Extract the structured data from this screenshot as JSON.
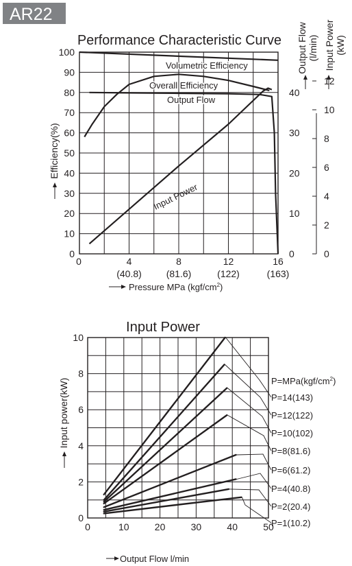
{
  "badge": "AR22",
  "chart_data": [
    {
      "type": "line",
      "title": "Performance Characteristic Curve",
      "xlabel": "Pressure MPa (kgf/cm²)",
      "xlabel_parts": [
        "Pressure MPa (kgf/cm",
        "2",
        ")"
      ],
      "ylabel": "Efficiency(%)",
      "y2label": [
        "Output Flow",
        "(l/min)"
      ],
      "y3label": [
        "Input Power",
        "(kW)"
      ],
      "xlim": [
        0,
        16
      ],
      "ylim": [
        0,
        100
      ],
      "y2lim": [
        0,
        50
      ],
      "y3lim": [
        0,
        14
      ],
      "x_ticks": [
        {
          "v": 0,
          "l1": "0",
          "l2": ""
        },
        {
          "v": 4,
          "l1": "4",
          "l2": "(40.8)"
        },
        {
          "v": 8,
          "l1": "8",
          "l2": "(81.6)"
        },
        {
          "v": 12,
          "l1": "12",
          "l2": "(122)"
        },
        {
          "v": 16,
          "l1": "16",
          "l2": "(163)"
        }
      ],
      "y_ticks": [
        0,
        10,
        20,
        30,
        40,
        50,
        60,
        70,
        80,
        90,
        100
      ],
      "y2_ticks": [
        0,
        10,
        20,
        30,
        40
      ],
      "y3_ticks": [
        0,
        2,
        4,
        6,
        8,
        10,
        12
      ],
      "grid": true,
      "series": [
        {
          "name": "Volumetric Efficiency",
          "axis": "left",
          "x": [
            0,
            16
          ],
          "y": [
            100,
            96
          ]
        },
        {
          "name": "Overall Efficiency",
          "axis": "left",
          "x": [
            0.4,
            1,
            2,
            3,
            4,
            6,
            8,
            10,
            12,
            14,
            15.3
          ],
          "y": [
            58,
            64,
            73,
            79,
            84,
            88,
            89,
            88,
            86,
            83,
            81
          ]
        },
        {
          "name": "Output Flow",
          "axis": "right",
          "x": [
            0.8,
            4,
            8,
            12,
            14.5,
            15.5,
            15.7,
            15.8,
            16
          ],
          "y": [
            40,
            39.9,
            39.8,
            39.7,
            39.5,
            39,
            30,
            15,
            0
          ]
        },
        {
          "name": "Input Power",
          "axis": "right2",
          "x": [
            0.8,
            4,
            8,
            12,
            14.8,
            15.2,
            15.5
          ],
          "y": [
            0.7,
            3.1,
            6.1,
            9.0,
            11.3,
            11.5,
            11.4
          ]
        }
      ]
    },
    {
      "type": "line",
      "title": "Input Power",
      "xlabel": "Output Flow l/min",
      "ylabel": "Input power(kW)",
      "xlim": [
        0,
        50
      ],
      "ylim": [
        0,
        10
      ],
      "x_ticks": [
        0,
        10,
        20,
        30,
        40,
        50
      ],
      "y_ticks": [
        0,
        2,
        4,
        6,
        8,
        10
      ],
      "grid": true,
      "legend_title_parts": [
        "P=MPa(kgf/cm",
        "2",
        ")"
      ],
      "series": [
        {
          "name": "P=14(143)",
          "x": [
            4.5,
            38
          ],
          "y": [
            1.3,
            10.0
          ]
        },
        {
          "name": "P=12(122)",
          "x": [
            4.5,
            37.8
          ],
          "y": [
            1.0,
            8.5
          ]
        },
        {
          "name": "P=10(102)",
          "x": [
            4.5,
            38.5
          ],
          "y": [
            0.9,
            7.2
          ]
        },
        {
          "name": "P=8(81.6)",
          "x": [
            4.5,
            38.5
          ],
          "y": [
            0.8,
            5.7
          ]
        },
        {
          "name": "P=6(61.2)",
          "x": [
            4.5,
            41
          ],
          "y": [
            0.6,
            3.5
          ]
        },
        {
          "name": "P=4(40.8)",
          "x": [
            4.5,
            41
          ],
          "y": [
            0.45,
            2.15
          ]
        },
        {
          "name": "P=2(20.4)",
          "x": [
            4.5,
            39
          ],
          "y": [
            0.35,
            1.6
          ]
        },
        {
          "name": "P=1(10.2)",
          "x": [
            4.5,
            42.5
          ],
          "y": [
            0.25,
            1.15
          ]
        }
      ]
    }
  ]
}
